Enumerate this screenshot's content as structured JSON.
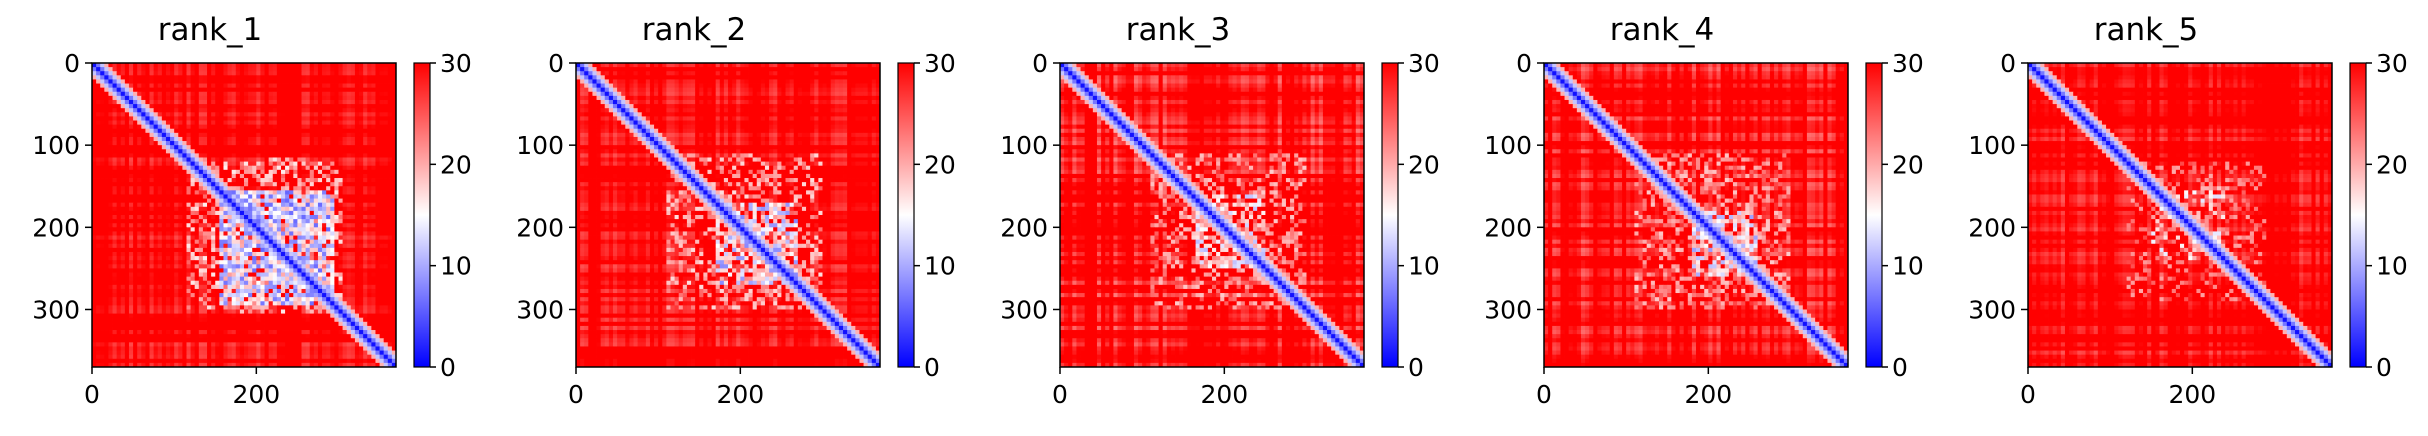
{
  "chart_data": [
    {
      "type": "heatmap",
      "title": "rank_1",
      "n_residues": 370,
      "xlim": [
        0,
        370
      ],
      "ylim": [
        370,
        0
      ],
      "xticks": [
        0,
        200
      ],
      "yticks": [
        0,
        100,
        200,
        300
      ],
      "colorbar": {
        "min": 0,
        "max": 30,
        "ticks": [
          0,
          10,
          20,
          30
        ],
        "colormap": "bwr"
      },
      "blocks": [
        {
          "x": [
            155,
            295
          ],
          "y": [
            155,
            295
          ],
          "min_value": 6,
          "density": 0.8
        },
        {
          "x": [
            115,
            305
          ],
          "y": [
            115,
            305
          ],
          "min_value": 16,
          "density": 0.4
        }
      ],
      "off_diagonal_texture": 0.35
    },
    {
      "type": "heatmap",
      "title": "rank_2",
      "n_residues": 370,
      "xlim": [
        0,
        370
      ],
      "ylim": [
        370,
        0
      ],
      "xticks": [
        0,
        200
      ],
      "yticks": [
        0,
        100,
        200,
        300
      ],
      "colorbar": {
        "min": 0,
        "max": 30,
        "ticks": [
          0,
          10,
          20,
          30
        ],
        "colormap": "bwr"
      },
      "blocks": [
        {
          "x": [
            170,
            270
          ],
          "y": [
            170,
            270
          ],
          "min_value": 8,
          "density": 0.6
        },
        {
          "x": [
            110,
            300
          ],
          "y": [
            110,
            300
          ],
          "min_value": 17,
          "density": 0.35
        }
      ],
      "off_diagonal_texture": 0.4
    },
    {
      "type": "heatmap",
      "title": "rank_3",
      "n_residues": 370,
      "xlim": [
        0,
        370
      ],
      "ylim": [
        370,
        0
      ],
      "xticks": [
        0,
        200
      ],
      "yticks": [
        0,
        100,
        200,
        300
      ],
      "colorbar": {
        "min": 0,
        "max": 30,
        "ticks": [
          0,
          10,
          20,
          30
        ],
        "colormap": "bwr"
      },
      "blocks": [
        {
          "x": [
            160,
            250
          ],
          "y": [
            160,
            250
          ],
          "min_value": 11,
          "density": 0.45
        },
        {
          "x": [
            110,
            300
          ],
          "y": [
            110,
            300
          ],
          "min_value": 18,
          "density": 0.35
        }
      ],
      "off_diagonal_texture": 0.55
    },
    {
      "type": "heatmap",
      "title": "rank_4",
      "n_residues": 370,
      "xlim": [
        0,
        370
      ],
      "ylim": [
        370,
        0
      ],
      "xticks": [
        0,
        200
      ],
      "yticks": [
        0,
        100,
        200,
        300
      ],
      "colorbar": {
        "min": 0,
        "max": 30,
        "ticks": [
          0,
          10,
          20,
          30
        ],
        "colormap": "bwr"
      },
      "blocks": [
        {
          "x": [
            180,
            260
          ],
          "y": [
            180,
            260
          ],
          "min_value": 9,
          "density": 0.6
        },
        {
          "x": [
            110,
            300
          ],
          "y": [
            110,
            300
          ],
          "min_value": 18,
          "density": 0.35
        }
      ],
      "off_diagonal_texture": 0.5
    },
    {
      "type": "heatmap",
      "title": "rank_5",
      "n_residues": 370,
      "xlim": [
        0,
        370
      ],
      "ylim": [
        370,
        0
      ],
      "xticks": [
        0,
        200
      ],
      "yticks": [
        0,
        100,
        200,
        300
      ],
      "colorbar": {
        "min": 0,
        "max": 30,
        "ticks": [
          0,
          10,
          20,
          30
        ],
        "colormap": "bwr"
      },
      "blocks": [
        {
          "x": [
            150,
            240
          ],
          "y": [
            150,
            240
          ],
          "min_value": 13,
          "density": 0.3
        },
        {
          "x": [
            120,
            290
          ],
          "y": [
            120,
            290
          ],
          "min_value": 20,
          "density": 0.25
        }
      ],
      "off_diagonal_texture": 0.4
    }
  ]
}
